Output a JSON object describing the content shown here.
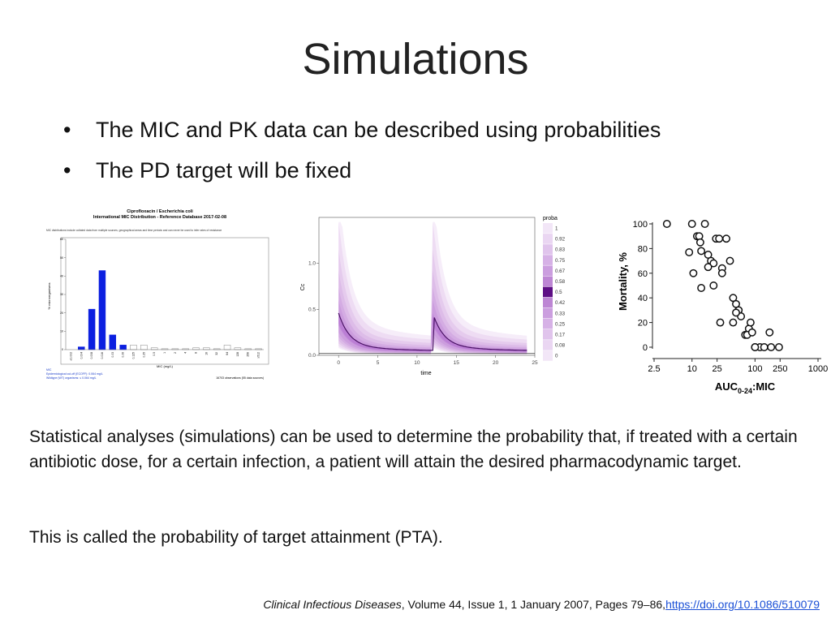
{
  "slide": {
    "title": "Simulations",
    "bullets": [
      {
        "text": "The MIC and PK data can be described using probabilities"
      },
      {
        "text": "The PD target will be fixed"
      }
    ],
    "para1": "Statistical analyses (simulations) can be used to determine the probability that, if treated with a certain antibiotic dose, for a certain infection, a patient will attain the desired pharmacodynamic target.",
    "para2": "This is called the probability of target attainment (PTA).",
    "citation": {
      "journal": "Clinical Infectious Diseases",
      "details": ", Volume 44, Issue 1, 1 January 2007, Pages 79–86,",
      "link": "https://doi.org/10.1086/510079"
    }
  },
  "chart_data": [
    {
      "type": "bar",
      "title": "Ciprofloxacin / Escherichia coli",
      "subtitle": "International MIC Distribution - Reference Database 2017-02-08",
      "note": "MIC distributions include collated data from multiple sources, geographical areas and time periods and can never be used to infer rates of resistance",
      "xlabel": "MIC (mg/L)",
      "ylabel": "% microorganisms",
      "ylim": [
        0,
        60
      ],
      "yticks": [
        0,
        10,
        20,
        30,
        40,
        50,
        60
      ],
      "categories": [
        "≤0.002",
        "0.004",
        "0.008",
        "0.016",
        "0.03",
        "0.06",
        "0.125",
        "0.25",
        "0.5",
        "1",
        "2",
        "4",
        "8",
        "16",
        "32",
        "64",
        "128",
        "256",
        "≥512"
      ],
      "values": [
        0,
        1.5,
        22,
        43,
        8,
        2.5,
        2.5,
        2.5,
        1,
        0.5,
        0.5,
        0.5,
        1,
        1,
        0.5,
        2.5,
        1,
        0.5,
        0.5
      ],
      "highlight_color": "#0b1fe0",
      "footer_left": [
        "MIC",
        "Epidemiological cut-off (ECOFF): 0.064 mg/L",
        "Wildtype (WT) organisms: ≤ 0.064 mg/L"
      ],
      "footer_right": "16703 observations (55 data sources)"
    },
    {
      "type": "area",
      "xlabel": "time",
      "ylabel": "Cc",
      "xlim": [
        -2.5,
        25
      ],
      "ylim": [
        0,
        1.5
      ],
      "xticks": [
        0,
        5,
        10,
        15,
        20,
        25
      ],
      "yticks": [
        0.0,
        0.5,
        1.0
      ],
      "median_x": [
        0,
        1,
        2,
        4,
        6,
        8,
        10,
        12,
        13,
        14,
        16,
        18,
        20,
        22,
        24
      ],
      "median_y": [
        0.38,
        0.22,
        0.16,
        0.1,
        0.07,
        0.055,
        0.045,
        0.04,
        0.38,
        0.22,
        0.12,
        0.08,
        0.06,
        0.05,
        0.04
      ],
      "legend_title": "proba",
      "legend_labels": [
        "1",
        "0.92",
        "0.83",
        "0.75",
        "0.67",
        "0.58",
        "0.5",
        "0.42",
        "0.33",
        "0.25",
        "0.17",
        "0.08",
        "0"
      ],
      "band_color": "#a24fc8"
    },
    {
      "type": "scatter",
      "xlabel": "AUC0-24:MIC",
      "ylabel": "Mortality, %",
      "xscale": "log",
      "xlim": [
        2.5,
        1000
      ],
      "ylim": [
        0,
        100
      ],
      "xticks": [
        2.5,
        10,
        25,
        100,
        250,
        1000
      ],
      "yticks": [
        0,
        20,
        40,
        60,
        80,
        100
      ],
      "x": [
        4,
        10,
        12,
        13,
        13.5,
        16,
        9,
        14,
        10.5,
        14,
        18,
        20,
        22,
        24,
        27,
        30,
        35,
        30,
        40,
        45,
        18,
        22,
        28,
        50,
        55,
        60,
        50,
        45,
        70,
        80,
        75,
        85,
        90,
        100,
        120,
        100,
        140,
        170,
        180,
        240
      ],
      "y": [
        100,
        100,
        90,
        90,
        85,
        100,
        77,
        78,
        60,
        48,
        75,
        70,
        68,
        88,
        88,
        64,
        88,
        60,
        70,
        40,
        65,
        50,
        20,
        35,
        30,
        25,
        28,
        20,
        10,
        15,
        10,
        20,
        12,
        0,
        0,
        0,
        0,
        12,
        0,
        0
      ]
    }
  ]
}
